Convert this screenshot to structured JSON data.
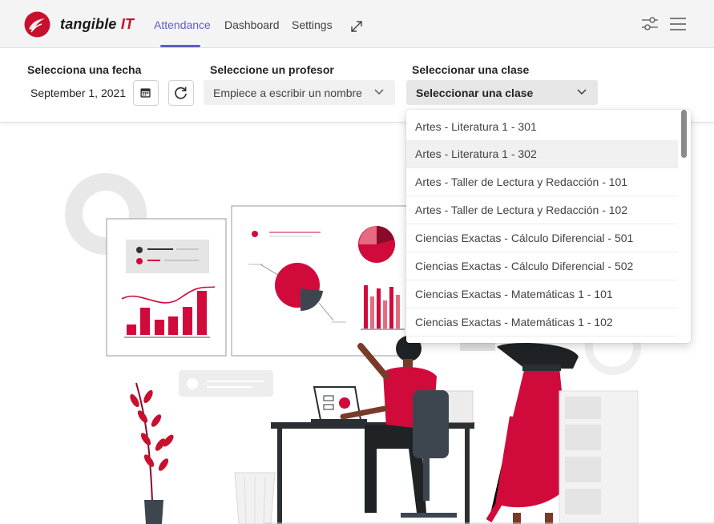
{
  "app": {
    "brand_name": "tangible",
    "brand_suffix": "IT"
  },
  "nav": {
    "tabs": [
      {
        "label": "Attendance",
        "active": true
      },
      {
        "label": "Dashboard",
        "active": false
      },
      {
        "label": "Settings",
        "active": false
      }
    ]
  },
  "filters": {
    "date_label": "Selecciona una fecha",
    "date_value": "September 1, 2021",
    "teacher_label": "Seleccione un profesor",
    "teacher_placeholder": "Empiece a escribir un nombre",
    "class_label": "Seleccionar una clase",
    "class_value": "Seleccionar una clase"
  },
  "dropdown": {
    "options": [
      "Artes - Literatura 1 - 301",
      "Artes - Literatura 1 - 302",
      "Artes - Taller de Lectura y Redacción - 101",
      "Artes - Taller de Lectura y Redacción - 102",
      "Ciencias Exactas - Cálculo Diferencial - 501",
      "Ciencias Exactas - Cálculo Diferencial - 502",
      "Ciencias Exactas - Matemáticas 1 - 101",
      "Ciencias Exactas - Matemáticas 1 - 102"
    ],
    "hovered_index": 1
  },
  "colors": {
    "accent": "#5b5fc7",
    "brand_red": "#c8102e",
    "illustration_red": "#d10a3c"
  },
  "icons": [
    "logo-icon",
    "expand-icon",
    "sliders-icon",
    "hamburger-icon",
    "calendar-icon",
    "refresh-icon",
    "chevron-down-icon"
  ]
}
